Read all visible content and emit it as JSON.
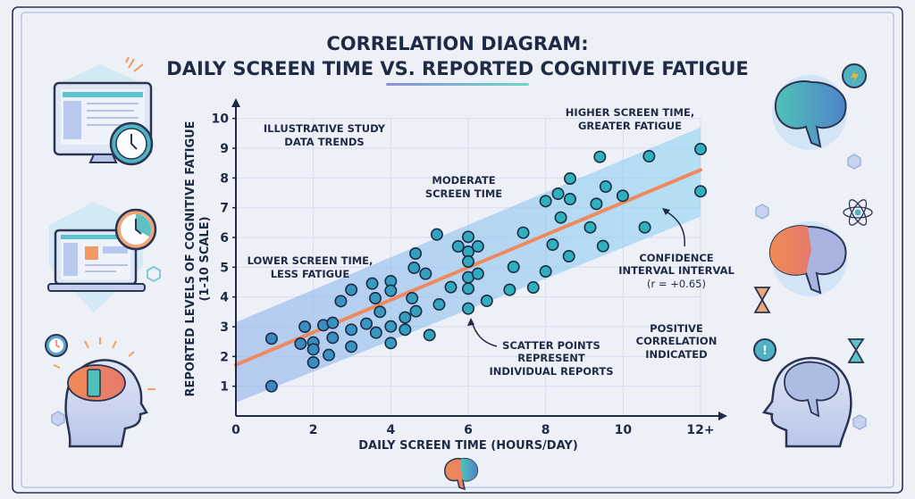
{
  "title": {
    "line1": "CORRELATION DIAGRAM:",
    "line2": "DAILY SCREEN TIME VS. REPORTED COGNITIVE FATIGUE"
  },
  "colors": {
    "background": "#eef0f8",
    "point_low": "#3f7fc4",
    "point_high": "#2fb1bd",
    "trend_line": "#ee8a5e",
    "confidence_band": "#9fd3f0",
    "text": "#1f2a44"
  },
  "icons": [
    "monitor-clock-icon",
    "laptop-clock-icon",
    "head-brain-phone-icon",
    "brain-lightning-icon",
    "brain-atom-hourglass-icon",
    "head-brain-alert-icon",
    "brain-logo-icon"
  ],
  "chart_data": {
    "type": "scatter",
    "title": "CORRELATION DIAGRAM: DAILY SCREEN TIME VS. REPORTED COGNITIVE FATIGUE",
    "xlabel": "DAILY SCREEN TIME (HOURS/DAY)",
    "ylabel_line1": "REPORTED LEVELS OF COGNITIVE FATIGUE",
    "ylabel_line2": "(1-10 SCALE)",
    "xlim": [
      0,
      12
    ],
    "ylim": [
      0,
      10
    ],
    "x_ticks": [
      "0",
      "2",
      "4",
      "6",
      "8",
      "10",
      "12+"
    ],
    "y_ticks": [
      "1",
      "2",
      "3",
      "4",
      "5",
      "6",
      "7",
      "8",
      "9",
      "10"
    ],
    "grid": true,
    "points": [
      [
        0.92,
        2.6
      ],
      [
        0.92,
        1.0
      ],
      [
        1.67,
        2.43
      ],
      [
        1.78,
        3.0
      ],
      [
        2.0,
        2.47
      ],
      [
        2.0,
        2.24
      ],
      [
        2.0,
        1.8
      ],
      [
        2.26,
        3.05
      ],
      [
        2.4,
        2.05
      ],
      [
        2.5,
        3.13
      ],
      [
        2.5,
        2.63
      ],
      [
        2.71,
        3.86
      ],
      [
        2.98,
        4.24
      ],
      [
        2.98,
        2.9
      ],
      [
        2.98,
        2.33
      ],
      [
        3.37,
        3.1
      ],
      [
        3.52,
        4.45
      ],
      [
        3.6,
        3.96
      ],
      [
        3.62,
        2.8
      ],
      [
        3.72,
        3.5
      ],
      [
        4.0,
        4.53
      ],
      [
        4.0,
        4.21
      ],
      [
        4.0,
        3.01
      ],
      [
        4.0,
        2.45
      ],
      [
        4.37,
        3.31
      ],
      [
        4.37,
        2.9
      ],
      [
        4.55,
        3.96
      ],
      [
        4.64,
        5.46
      ],
      [
        4.6,
        4.98
      ],
      [
        4.65,
        3.52
      ],
      [
        4.9,
        4.78
      ],
      [
        5.0,
        2.72
      ],
      [
        5.19,
        6.1
      ],
      [
        5.25,
        3.75
      ],
      [
        5.55,
        4.33
      ],
      [
        5.74,
        5.7
      ],
      [
        6.0,
        6.02
      ],
      [
        6.0,
        5.52
      ],
      [
        6.0,
        5.19
      ],
      [
        6.0,
        4.66
      ],
      [
        6.0,
        4.28
      ],
      [
        6.0,
        3.61
      ],
      [
        6.25,
        5.7
      ],
      [
        6.25,
        4.78
      ],
      [
        6.48,
        3.87
      ],
      [
        7.07,
        4.24
      ],
      [
        7.17,
        5.01
      ],
      [
        7.42,
        6.16
      ],
      [
        7.68,
        4.32
      ],
      [
        8.0,
        4.86
      ],
      [
        8.0,
        7.22
      ],
      [
        8.18,
        5.76
      ],
      [
        8.32,
        7.47
      ],
      [
        8.39,
        6.67
      ],
      [
        8.6,
        5.37
      ],
      [
        8.63,
        7.98
      ],
      [
        8.63,
        7.29
      ],
      [
        9.15,
        6.34
      ],
      [
        9.31,
        7.13
      ],
      [
        9.4,
        8.71
      ],
      [
        9.48,
        5.71
      ],
      [
        9.55,
        7.71
      ],
      [
        9.99,
        7.4
      ],
      [
        10.56,
        6.34
      ],
      [
        10.67,
        8.73
      ],
      [
        12.0,
        8.97
      ],
      [
        12.0,
        7.55
      ]
    ],
    "trend_line": {
      "x": [
        0,
        12
      ],
      "y": [
        1.72,
        8.27
      ]
    },
    "confidence_band": {
      "x": [
        0,
        12
      ],
      "lower": [
        0.45,
        6.7
      ],
      "upper": [
        3.15,
        9.7
      ]
    },
    "correlation_r": "+0.65",
    "annotations": {
      "study": [
        "ILLUSTRATIVE STUDY",
        "DATA TRENDS"
      ],
      "lower": [
        "LOWER SCREEN TIME,",
        "LESS FATIGUE"
      ],
      "moderate": [
        "MODERATE",
        "SCREEN TIME"
      ],
      "higher": [
        "HIGHER SCREEN TIME,",
        "GREATER FATIGUE"
      ],
      "confidence": [
        "CONFIDENCE",
        "INTERVAL INTERVAL",
        "(r = +0.65)"
      ],
      "scatter": [
        "SCATTER POINTS",
        "REPRESENT",
        "INDIVIDUAL REPORTS"
      ],
      "positive": [
        "POSITIVE",
        "CORRELATION",
        "INDICATED"
      ]
    }
  }
}
